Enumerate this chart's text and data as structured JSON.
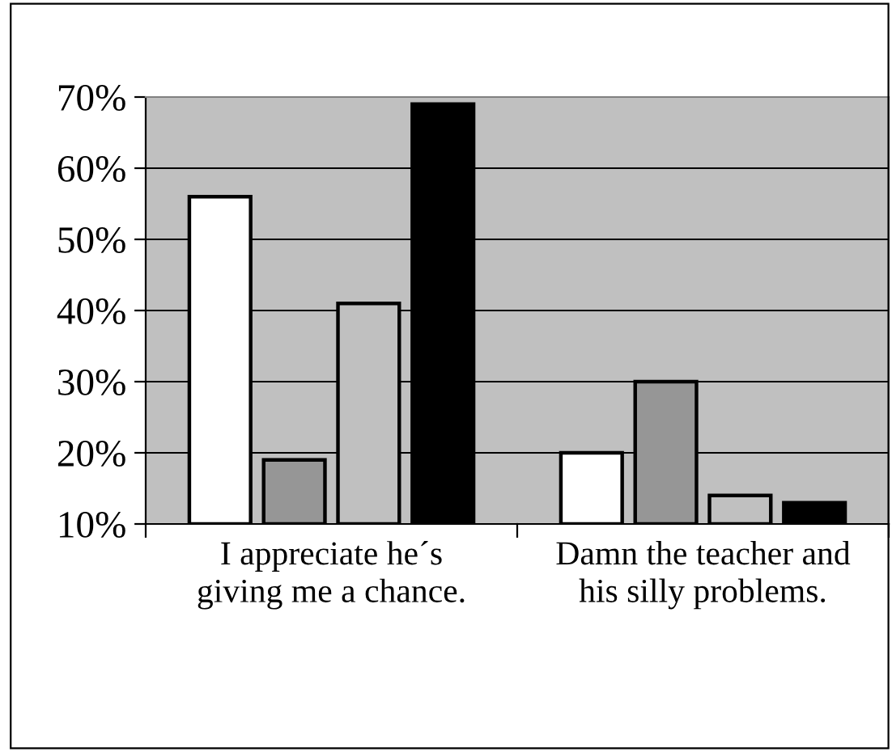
{
  "chart_data": {
    "type": "bar",
    "categories": [
      "I appreciate he´s giving me a chance.",
      "Damn the teacher and his silly problems."
    ],
    "series": [
      {
        "color": "#ffffff",
        "values": [
          56,
          20
        ]
      },
      {
        "color": "#969696",
        "values": [
          19,
          30
        ]
      },
      {
        "color": "#c0c0c0",
        "values": [
          41,
          14
        ]
      },
      {
        "color": "#000000",
        "values": [
          69,
          13
        ]
      }
    ],
    "ylim": [
      10,
      70
    ],
    "yticks": [
      {
        "value": 10,
        "label": "10%"
      },
      {
        "value": 20,
        "label": "20%"
      },
      {
        "value": 30,
        "label": "30%"
      },
      {
        "value": 40,
        "label": "40%"
      },
      {
        "value": 50,
        "label": "50%"
      },
      {
        "value": 60,
        "label": "60%"
      },
      {
        "value": 70,
        "label": "70%"
      }
    ],
    "grid": "y",
    "legend": false
  }
}
